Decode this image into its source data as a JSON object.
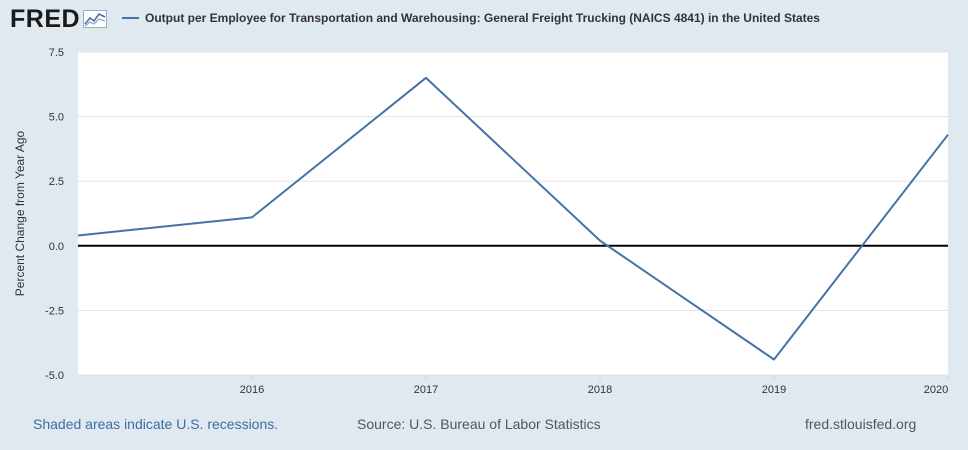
{
  "header": {
    "logo_text": "FRED",
    "legend_label": "Output per Employee for Transportation and Warehousing: General Freight Trucking (NAICS 4841) in the United States"
  },
  "footer": {
    "recessions_note": "Shaded areas indicate U.S. recessions.",
    "source": "Source: U.S. Bureau of Labor Statistics",
    "site": "fred.stlouisfed.org"
  },
  "colors": {
    "series": "#4572a7",
    "background": "#e1e9f0",
    "plot": "#ffffff",
    "zero_line": "#000000"
  },
  "chart_data": {
    "type": "line",
    "title": "Output per Employee for Transportation and Warehousing: General Freight Trucking (NAICS 4841) in the United States",
    "ylabel": "Percent Change from Year Ago",
    "xlabel": "",
    "x_ticks": [
      "2016",
      "2017",
      "2018",
      "2019",
      "2020"
    ],
    "y_ticks": [
      "-5.0",
      "-2.5",
      "0.0",
      "2.5",
      "5.0",
      "7.5"
    ],
    "xlim": [
      2015,
      2020
    ],
    "ylim": [
      -5,
      7.5
    ],
    "grid": true,
    "series": [
      {
        "x": [
          2015,
          2016,
          2017,
          2018,
          2019,
          2020
        ],
        "y": [
          0.4,
          1.1,
          6.5,
          0.2,
          -4.4,
          4.3
        ]
      }
    ]
  }
}
